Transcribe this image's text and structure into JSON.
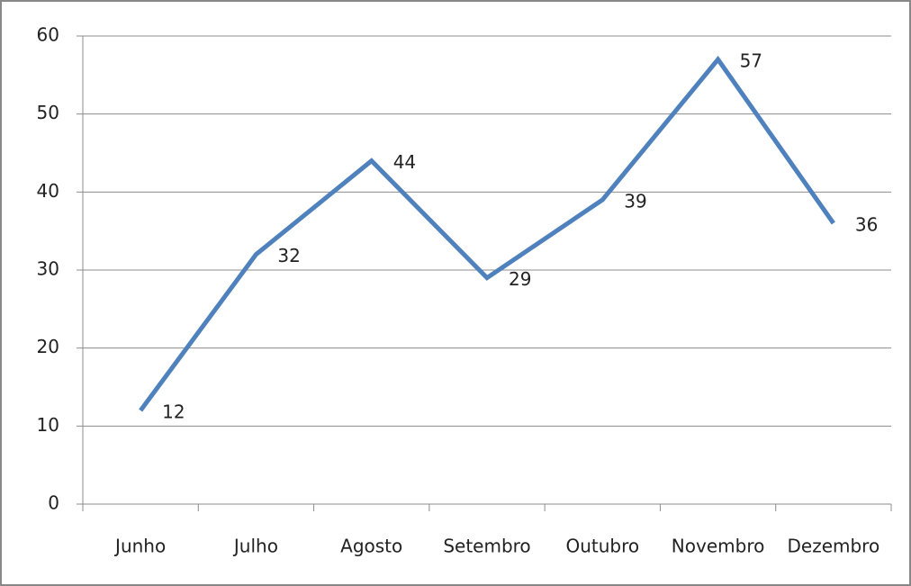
{
  "chart_data": {
    "type": "line",
    "categories": [
      "Junho",
      "Julho",
      "Agosto",
      "Setembro",
      "Outubro",
      "Novembro",
      "Dezembro"
    ],
    "values": [
      12,
      32,
      44,
      29,
      39,
      57,
      36
    ],
    "color": "#4f81bd",
    "ylim": [
      0,
      60
    ],
    "yticks": [
      0,
      10,
      20,
      30,
      40,
      50,
      60
    ],
    "grid": true
  }
}
